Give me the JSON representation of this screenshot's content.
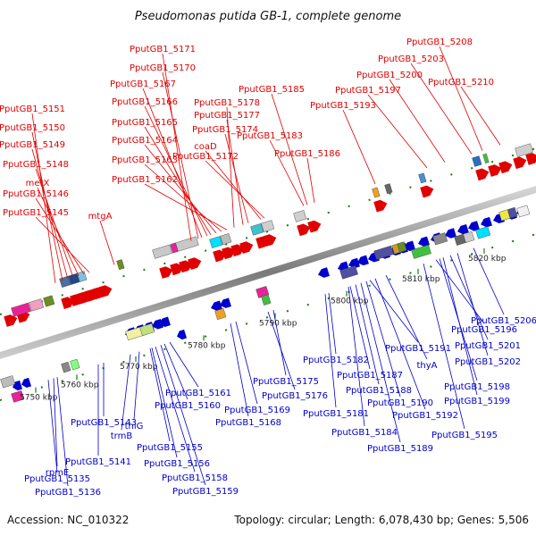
{
  "title": "Pseudomonas putida GB-1, complete genome",
  "footer": {
    "accession": "Accession: NC_010322",
    "topology": "Topology: circular; Length: 6,078,430 bp; Genes: 5,506"
  },
  "colors": {
    "top_strand": "#e00000",
    "bottom_strand": "#0000cc",
    "backbone": "#888888",
    "tick": "#1a7a1a"
  },
  "ticks": [
    "5750 kbp",
    "5760 kbp",
    "5770 kbp",
    "5780 kbp",
    "5790 kbp",
    "5800 kbp",
    "5810 kbp",
    "5820 kbp"
  ],
  "top_labels": [
    "PputGB1_5151",
    "PputGB1_5150",
    "PputGB1_5149",
    "PputGB1_5148",
    "metX",
    "PputGB1_5146",
    "PputGB1_5145",
    "mtgA",
    "PputGB1_5171",
    "PputGB1_5170",
    "PputGB1_5167",
    "PputGB1_5166",
    "PputGB1_5165",
    "PputGB1_5164",
    "PputGB1_5163",
    "PputGB1_5162",
    "PputGB1_5178",
    "PputGB1_5177",
    "PputGB1_5174",
    "coaD",
    "PputGB1_5172",
    "PputGB1_5185",
    "PputGB1_5183",
    "PputGB1_5186",
    "PputGB1_5208",
    "PputGB1_5203",
    "PputGB1_5200",
    "PputGB1_5197",
    "PputGB1_5193",
    "PputGB1_5210"
  ],
  "bottom_labels": [
    "rpmE",
    "PputGB1_5135",
    "PputGB1_5136",
    "PputGB1_5141",
    "PputGB1_5143",
    "trmB",
    "thiG",
    "PputGB1_5155",
    "PputGB1_5156",
    "PputGB1_5158",
    "PputGB1_5159",
    "PputGB1_5160",
    "PputGB1_5161",
    "PputGB1_5168",
    "PputGB1_5169",
    "PputGB1_5176",
    "PputGB1_5175",
    "PputGB1_5181",
    "PputGB1_5182",
    "PputGB1_5184",
    "PputGB1_5187",
    "PputGB1_5188",
    "PputGB1_5189",
    "PputGB1_5190",
    "PputGB1_5191",
    "PputGB1_5192",
    "thyA",
    "PputGB1_5195",
    "PputGB1_5196",
    "PputGB1_5198",
    "PputGB1_5199",
    "PputGB1_5201",
    "PputGB1_5202",
    "PputGB1_5206"
  ]
}
